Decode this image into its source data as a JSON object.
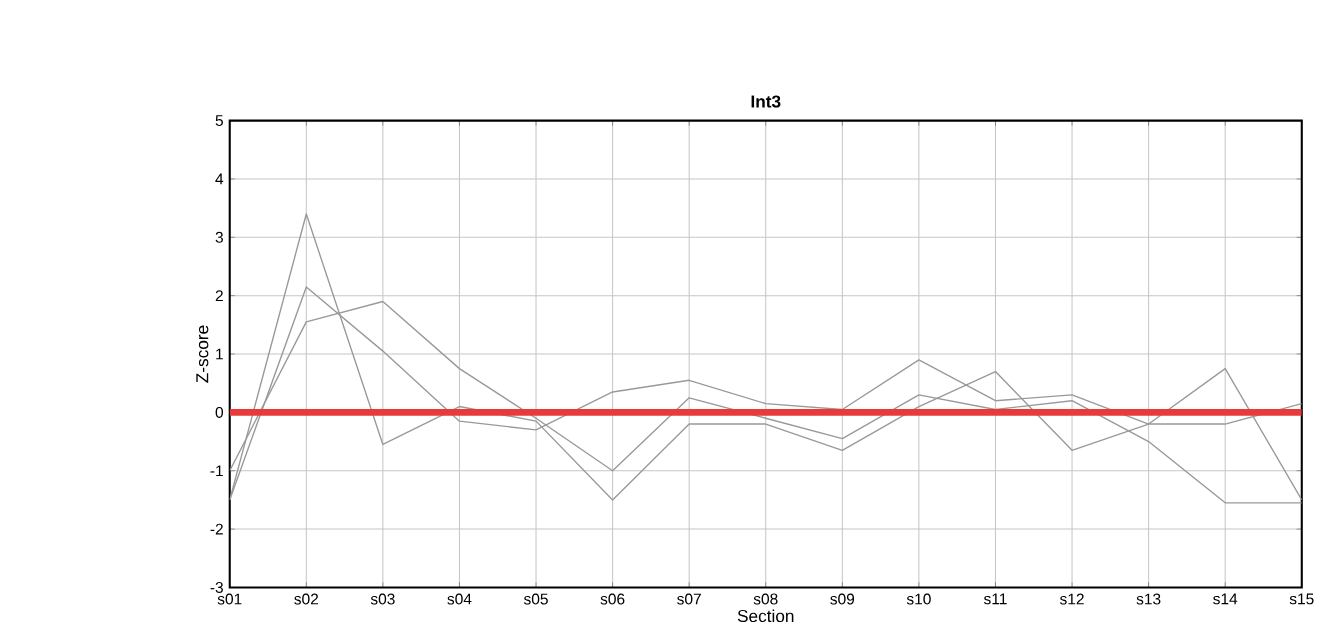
{
  "chart_data": {
    "type": "line",
    "title": "Int3",
    "xlabel": "Section",
    "ylabel": "Z-score",
    "categories": [
      "s01",
      "s02",
      "s03",
      "s04",
      "s05",
      "s06",
      "s07",
      "s08",
      "s09",
      "s10",
      "s11",
      "s12",
      "s13",
      "s14",
      "s15"
    ],
    "series": [
      {
        "color": "#999999",
        "values": [
          -1.5,
          3.4,
          -0.55,
          0.1,
          -0.15,
          -1.5,
          -0.2,
          -0.2,
          -0.65,
          0.1,
          0.7,
          -0.65,
          -0.2,
          -0.2,
          0.15
        ]
      },
      {
        "color": "#999999",
        "values": [
          -1.0,
          1.55,
          1.9,
          0.75,
          -0.1,
          -1.0,
          0.25,
          -0.1,
          -0.45,
          0.3,
          0.05,
          0.2,
          -0.5,
          -1.55,
          -1.55
        ]
      },
      {
        "color": "#999999",
        "values": [
          -1.5,
          2.15,
          1.05,
          -0.15,
          -0.3,
          0.35,
          0.55,
          0.15,
          0.05,
          0.9,
          0.2,
          0.3,
          -0.2,
          0.75,
          -1.5
        ]
      }
    ],
    "ylim": [
      -3,
      5
    ],
    "yticks": [
      -3,
      -2,
      -1,
      0,
      1,
      2,
      3,
      4,
      5
    ],
    "ref_lines": [
      {
        "axis": "y",
        "value": 0,
        "color": "#e83a3a"
      }
    ],
    "grid": true,
    "marker": "none"
  }
}
